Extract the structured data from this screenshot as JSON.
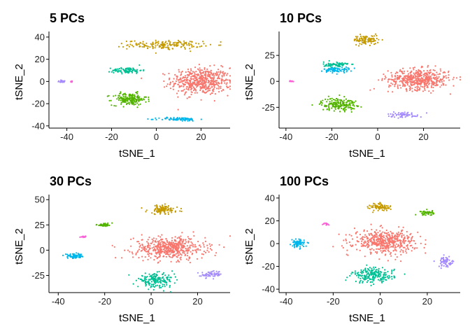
{
  "figure": {
    "panels": [
      {
        "title": "5 PCs",
        "xlabel": "tSNE_1",
        "ylabel": "tSNE_2"
      },
      {
        "title": "10 PCs",
        "xlabel": "tSNE_1",
        "ylabel": "tSNE_2"
      },
      {
        "title": "30 PCs",
        "xlabel": "tSNE_1",
        "ylabel": "tSNE_2"
      },
      {
        "title": "100 PCs",
        "xlabel": "tSNE_1",
        "ylabel": "tSNE_2"
      }
    ]
  },
  "cluster_colors": [
    "#F8766D",
    "#C49A00",
    "#53B400",
    "#00C094",
    "#00B6EB",
    "#A58AFF",
    "#FB61D7"
  ],
  "chart_data": [
    {
      "type": "scatter",
      "title": "5 PCs",
      "xlabel": "tSNE_1",
      "ylabel": "tSNE_2",
      "xlim": [
        -48,
        33
      ],
      "ylim": [
        -42,
        45
      ],
      "xticks": [
        -40,
        -20,
        0,
        20
      ],
      "yticks": [
        -40,
        -20,
        0,
        20,
        40
      ],
      "grid": false,
      "legend": "none",
      "clusters": [
        {
          "cluster": 0,
          "center": [
            20,
            0
          ],
          "spread": [
            12,
            11
          ],
          "n": 520
        },
        {
          "cluster": 1,
          "center": [
            4,
            33
          ],
          "spread": [
            15,
            3.5
          ],
          "n": 170
        },
        {
          "cluster": 2,
          "center": [
            -12,
            -16
          ],
          "spread": [
            7,
            5
          ],
          "n": 180
        },
        {
          "cluster": 3,
          "center": [
            -13,
            10
          ],
          "spread": [
            6,
            2.5
          ],
          "n": 90
        },
        {
          "cluster": 4,
          "center": [
            10,
            -34
          ],
          "spread": [
            8,
            1.5
          ],
          "n": 80
        },
        {
          "cluster": 5,
          "center": [
            -42,
            0
          ],
          "spread": [
            2,
            1
          ],
          "n": 20
        },
        {
          "cluster": 6,
          "center": [
            -38,
            0
          ],
          "spread": [
            1.2,
            0.6
          ],
          "n": 8
        }
      ]
    },
    {
      "type": "scatter",
      "title": "10 PCs",
      "xlabel": "tSNE_1",
      "ylabel": "tSNE_2",
      "xlim": [
        -43,
        36
      ],
      "ylim": [
        -45,
        48
      ],
      "xticks": [
        -40,
        -20,
        0,
        20
      ],
      "yticks": [
        -25,
        0,
        25
      ],
      "grid": false,
      "legend": "none",
      "clusters": [
        {
          "cluster": 0,
          "center": [
            18,
            2
          ],
          "spread": [
            12,
            9
          ],
          "n": 500
        },
        {
          "cluster": 1,
          "center": [
            -5,
            40
          ],
          "spread": [
            5,
            4
          ],
          "n": 100
        },
        {
          "cluster": 2,
          "center": [
            -17,
            -22
          ],
          "spread": [
            7,
            5.5
          ],
          "n": 180
        },
        {
          "cluster": 3,
          "center": [
            -18,
            16
          ],
          "spread": [
            5,
            2.5
          ],
          "n": 80
        },
        {
          "cluster": 4,
          "center": [
            -18,
            11
          ],
          "spread": [
            5,
            2.5
          ],
          "n": 70
        },
        {
          "cluster": 5,
          "center": [
            12,
            -32
          ],
          "spread": [
            7,
            2.5
          ],
          "n": 60
        },
        {
          "cluster": 6,
          "center": [
            -38,
            0
          ],
          "spread": [
            1.2,
            0.6
          ],
          "n": 15
        }
      ]
    },
    {
      "type": "scatter",
      "title": "30 PCs",
      "xlabel": "tSNE_1",
      "ylabel": "tSNE_2",
      "xlim": [
        -44,
        34
      ],
      "ylim": [
        -42,
        55
      ],
      "xticks": [
        -40,
        -20,
        0,
        20
      ],
      "yticks": [
        -25,
        0,
        25,
        50
      ],
      "grid": false,
      "legend": "none",
      "clusters": [
        {
          "cluster": 0,
          "center": [
            8,
            2
          ],
          "spread": [
            14,
            10
          ],
          "n": 520
        },
        {
          "cluster": 1,
          "center": [
            5,
            40
          ],
          "spread": [
            6,
            4
          ],
          "n": 110
        },
        {
          "cluster": 2,
          "center": [
            -20,
            25
          ],
          "spread": [
            3,
            1.5
          ],
          "n": 45
        },
        {
          "cluster": 3,
          "center": [
            2,
            -30
          ],
          "spread": [
            7,
            6
          ],
          "n": 180
        },
        {
          "cluster": 4,
          "center": [
            -33,
            -6
          ],
          "spread": [
            4,
            2
          ],
          "n": 70
        },
        {
          "cluster": 5,
          "center": [
            26,
            -24
          ],
          "spread": [
            4,
            3
          ],
          "n": 60
        },
        {
          "cluster": 6,
          "center": [
            -29,
            13
          ],
          "spread": [
            1.5,
            0.8
          ],
          "n": 15
        }
      ]
    },
    {
      "type": "scatter",
      "title": "100 PCs",
      "xlabel": "tSNE_1",
      "ylabel": "tSNE_2",
      "xlim": [
        -43,
        34
      ],
      "ylim": [
        -43,
        43
      ],
      "xticks": [
        -40,
        -20,
        0,
        20
      ],
      "yticks": [
        -40,
        -20,
        0,
        20,
        40
      ],
      "grid": false,
      "legend": "none",
      "clusters": [
        {
          "cluster": 0,
          "center": [
            2,
            2
          ],
          "spread": [
            12,
            9
          ],
          "n": 480
        },
        {
          "cluster": 1,
          "center": [
            0,
            32
          ],
          "spread": [
            4,
            3
          ],
          "n": 80
        },
        {
          "cluster": 2,
          "center": [
            20,
            27
          ],
          "spread": [
            2.5,
            2
          ],
          "n": 50
        },
        {
          "cluster": 3,
          "center": [
            -3,
            -28
          ],
          "spread": [
            8,
            6
          ],
          "n": 200
        },
        {
          "cluster": 4,
          "center": [
            -35,
            0
          ],
          "spread": [
            2.5,
            3
          ],
          "n": 80
        },
        {
          "cluster": 5,
          "center": [
            28,
            -16
          ],
          "spread": [
            3,
            4
          ],
          "n": 60
        },
        {
          "cluster": 6,
          "center": [
            -23,
            17
          ],
          "spread": [
            1.2,
            1
          ],
          "n": 15
        }
      ]
    }
  ]
}
